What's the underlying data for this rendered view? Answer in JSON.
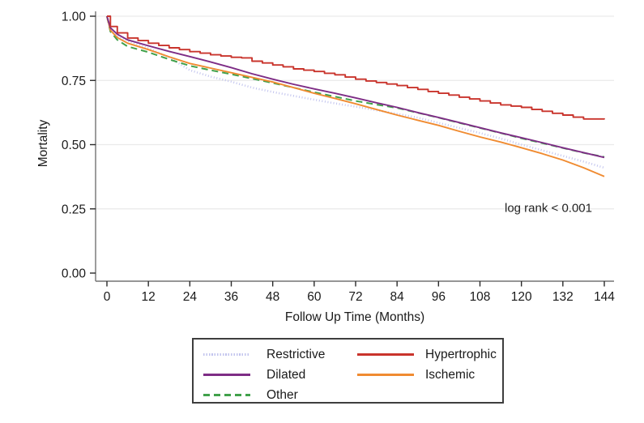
{
  "chart_data": {
    "type": "line",
    "subtype": "kaplan_meier_survival",
    "title": "",
    "xlabel": "Follow Up Time (Months)",
    "ylabel": "Mortality",
    "annotation": "log rank < 0.001",
    "xlim": [
      0,
      144
    ],
    "ylim": [
      0.0,
      1.0
    ],
    "grid": "horizontal",
    "legend_position": "bottom",
    "x_ticks": [
      0,
      12,
      24,
      36,
      48,
      60,
      72,
      84,
      96,
      108,
      120,
      132,
      144
    ],
    "y_ticks": [
      "0.00",
      "0.25",
      "0.50",
      "0.75",
      "1.00"
    ],
    "y_gridlines": [
      0.25,
      0.5,
      0.75,
      1.0
    ],
    "x": [
      0,
      1,
      3,
      6,
      12,
      18,
      24,
      30,
      36,
      42,
      48,
      54,
      60,
      66,
      72,
      78,
      84,
      90,
      96,
      102,
      108,
      114,
      120,
      126,
      132,
      138,
      144
    ],
    "draw_order": [
      "Restrictive",
      "Other",
      "Ischemic",
      "Dilated",
      "Hypertrophic"
    ],
    "series": [
      {
        "name": "Restrictive",
        "color": "#c2c4ee",
        "style": "dotted",
        "step": false,
        "values": [
          1.0,
          0.95,
          0.925,
          0.905,
          0.875,
          0.84,
          0.79,
          0.765,
          0.745,
          0.722,
          0.705,
          0.69,
          0.675,
          0.661,
          0.648,
          0.634,
          0.62,
          0.605,
          0.585,
          0.565,
          0.545,
          0.524,
          0.5,
          0.478,
          0.456,
          0.434,
          0.41
        ]
      },
      {
        "name": "Dilated",
        "color": "#7e2d86",
        "style": "solid",
        "step": false,
        "values": [
          1.0,
          0.955,
          0.93,
          0.908,
          0.885,
          0.863,
          0.843,
          0.822,
          0.8,
          0.776,
          0.755,
          0.735,
          0.717,
          0.7,
          0.682,
          0.663,
          0.645,
          0.625,
          0.606,
          0.586,
          0.566,
          0.546,
          0.527,
          0.508,
          0.488,
          0.469,
          0.45
        ]
      },
      {
        "name": "Other",
        "color": "#41a14b",
        "style": "dashed",
        "step": false,
        "values": [
          1.0,
          0.94,
          0.908,
          0.882,
          0.86,
          0.832,
          0.807,
          0.79,
          0.774,
          0.757,
          0.74,
          0.722,
          0.704,
          0.687,
          0.67,
          0.656,
          0.643,
          0.624,
          0.605,
          0.585,
          0.565,
          0.545,
          0.525,
          0.506,
          0.487,
          0.468,
          0.452
        ]
      },
      {
        "name": "Hypertrophic",
        "color": "#c9342c",
        "style": "solid",
        "step": true,
        "x": [
          0,
          1,
          3,
          6,
          9,
          12,
          15,
          18,
          21,
          24,
          27,
          30,
          33,
          36,
          39,
          42,
          45,
          48,
          51,
          54,
          57,
          60,
          63,
          66,
          69,
          72,
          75,
          78,
          81,
          84,
          87,
          90,
          93,
          96,
          99,
          102,
          105,
          108,
          111,
          114,
          117,
          120,
          123,
          126,
          129,
          132,
          135,
          138,
          141,
          144
        ],
        "values": [
          1.0,
          0.96,
          0.935,
          0.915,
          0.905,
          0.895,
          0.886,
          0.877,
          0.87,
          0.862,
          0.856,
          0.85,
          0.845,
          0.84,
          0.838,
          0.825,
          0.818,
          0.81,
          0.803,
          0.795,
          0.79,
          0.785,
          0.778,
          0.772,
          0.763,
          0.755,
          0.748,
          0.742,
          0.736,
          0.73,
          0.722,
          0.715,
          0.707,
          0.7,
          0.693,
          0.685,
          0.678,
          0.67,
          0.662,
          0.655,
          0.65,
          0.645,
          0.637,
          0.63,
          0.622,
          0.615,
          0.607,
          0.6,
          0.6,
          0.598
        ]
      },
      {
        "name": "Ischemic",
        "color": "#f08b31",
        "style": "solid",
        "step": false,
        "values": [
          1.0,
          0.945,
          0.917,
          0.895,
          0.87,
          0.842,
          0.816,
          0.798,
          0.78,
          0.762,
          0.744,
          0.722,
          0.7,
          0.68,
          0.659,
          0.637,
          0.615,
          0.595,
          0.575,
          0.552,
          0.53,
          0.51,
          0.488,
          0.465,
          0.44,
          0.41,
          0.376
        ]
      }
    ]
  },
  "legend": {
    "columns": [
      [
        "Restrictive",
        "Dilated",
        "Other"
      ],
      [
        "Hypertrophic",
        "Ischemic"
      ]
    ]
  },
  "colors": {
    "gridline": "#eaeaea",
    "axis": "#737373",
    "tick": "#2a2a2a",
    "text": "#1a1a1a"
  }
}
